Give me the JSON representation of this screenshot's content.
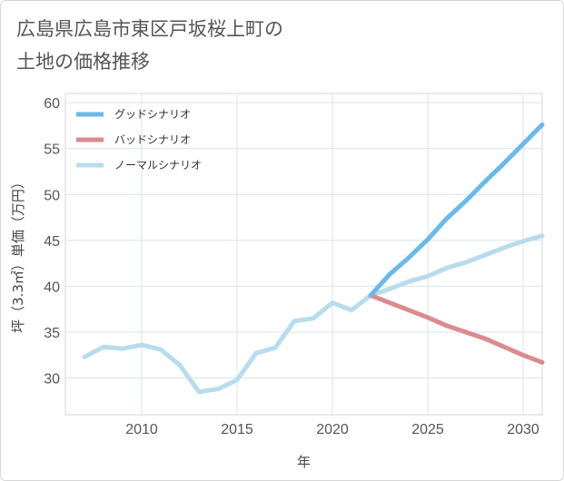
{
  "title_line1": "広島県広島市東区戸坂桜上町の",
  "title_line2": "土地の価格推移",
  "chart_data": {
    "type": "line",
    "xlabel": "年",
    "ylabel": "坪（3.3㎡）単価（万円）",
    "xlim": [
      2006,
      2031
    ],
    "ylim": [
      26,
      61
    ],
    "x_ticks": [
      2010,
      2015,
      2020,
      2025,
      2030
    ],
    "y_ticks": [
      30,
      35,
      40,
      45,
      50,
      55,
      60
    ],
    "grid": true,
    "legend_position": "top-left",
    "series": [
      {
        "name": "グッドシナリオ",
        "color": "#6cb8ea",
        "x": [
          2022,
          2023,
          2024,
          2025,
          2026,
          2027,
          2028,
          2029,
          2030,
          2031
        ],
        "y": [
          39.0,
          41.3,
          43.1,
          45.1,
          47.4,
          49.3,
          51.4,
          53.4,
          55.5,
          57.6
        ]
      },
      {
        "name": "バッドシナリオ",
        "color": "#dc8a8f",
        "x": [
          2022,
          2023,
          2024,
          2025,
          2026,
          2027,
          2028,
          2029,
          2030,
          2031
        ],
        "y": [
          39.0,
          38.2,
          37.4,
          36.6,
          35.7,
          35.0,
          34.3,
          33.4,
          32.5,
          31.7
        ]
      },
      {
        "name": "ノーマルシナリオ",
        "color": "#b8dcee",
        "x": [
          2007,
          2008,
          2009,
          2010,
          2011,
          2012,
          2013,
          2014,
          2015,
          2016,
          2017,
          2018,
          2019,
          2020,
          2021,
          2022,
          2023,
          2024,
          2025,
          2026,
          2027,
          2028,
          2029,
          2030,
          2031
        ],
        "y": [
          32.3,
          33.4,
          33.2,
          33.6,
          33.1,
          31.4,
          28.5,
          28.8,
          29.8,
          32.7,
          33.3,
          36.2,
          36.5,
          38.2,
          37.4,
          39.0,
          39.7,
          40.5,
          41.1,
          42.0,
          42.6,
          43.4,
          44.2,
          44.9,
          45.5
        ]
      }
    ]
  }
}
